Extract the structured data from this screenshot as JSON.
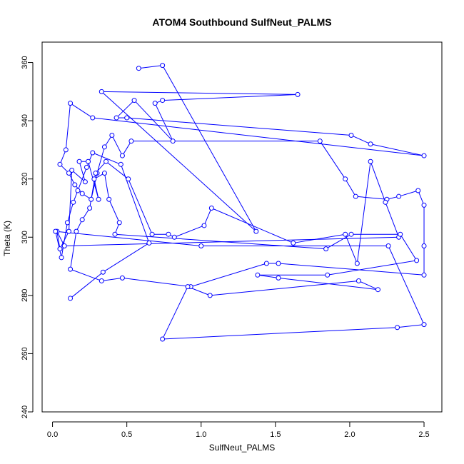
{
  "chart_data": {
    "type": "line",
    "title": "ATOM4 Southbound SulfNeut_PALMS",
    "xlabel": "SulfNeut_PALMS",
    "ylabel": "Theta (K)",
    "xlim": [
      -0.07,
      2.62
    ],
    "ylim": [
      240,
      367
    ],
    "x_ticks": [
      0.0,
      0.5,
      1.0,
      1.5,
      2.0,
      2.5
    ],
    "x_tick_labels": [
      "0.0",
      "0.5",
      "1.0",
      "1.5",
      "2.0",
      "2.5"
    ],
    "y_ticks": [
      240,
      260,
      280,
      300,
      320,
      340,
      360
    ],
    "y_tick_labels": [
      "240",
      "260",
      "280",
      "300",
      "320",
      "340",
      "360"
    ],
    "series_color": "#0000ff",
    "marker": "open-circle",
    "grid": false,
    "x": [
      0.58,
      0.74,
      1.37,
      0.33,
      1.65,
      0.74,
      0.69,
      0.81,
      0.55,
      0.43,
      0.5,
      2.01,
      2.14,
      2.5,
      0.27,
      0.12,
      0.09,
      0.05,
      0.11,
      0.15,
      0.2,
      0.26,
      0.3,
      0.35,
      0.4,
      0.47,
      0.53,
      1.8,
      1.97,
      2.04,
      2.25,
      2.33,
      2.46,
      2.5,
      2.5,
      2.5,
      1.52,
      1.44,
      0.93,
      0.47,
      0.33,
      0.12,
      0.16,
      0.2,
      0.25,
      0.29,
      0.36,
      0.51,
      0.67,
      0.78,
      0.82,
      1.02,
      1.07,
      1.62,
      1.97,
      2.05,
      2.14,
      2.24,
      2.33,
      0.08,
      0.03,
      0.05,
      0.11,
      0.13,
      0.22,
      0.18,
      0.24,
      0.31,
      0.28,
      0.35,
      0.38,
      0.45,
      0.42,
      1.84,
      2.01,
      2.34,
      2.45,
      1.85,
      1.38,
      1.52,
      2.19,
      2.06,
      1.06,
      0.91,
      0.74,
      2.32,
      2.5,
      2.26,
      1.0,
      0.02,
      0.06,
      0.1,
      0.14,
      0.17,
      0.23,
      0.27,
      0.46,
      0.65,
      0.34,
      0.12
    ],
    "y": [
      358,
      359,
      302,
      350,
      349,
      347,
      346,
      333,
      347,
      341,
      341,
      335,
      332,
      328,
      341,
      346,
      330,
      325,
      322,
      318,
      315,
      313,
      322,
      331,
      335,
      328,
      333,
      333,
      320,
      314,
      313,
      314,
      316,
      311,
      297,
      287,
      291,
      291,
      283,
      286,
      285,
      289,
      302,
      306,
      310,
      322,
      326,
      320,
      301,
      301,
      300,
      304,
      310,
      298,
      301,
      291,
      326,
      312,
      300,
      297,
      302,
      296,
      302,
      323,
      319,
      326,
      326,
      313,
      320,
      322,
      313,
      305,
      301,
      296,
      301,
      301,
      292,
      287,
      287,
      286,
      282,
      285,
      280,
      283,
      265,
      269,
      270,
      297,
      297,
      302,
      293,
      305,
      312,
      316,
      324,
      329,
      325,
      298,
      288,
      279
    ]
  }
}
